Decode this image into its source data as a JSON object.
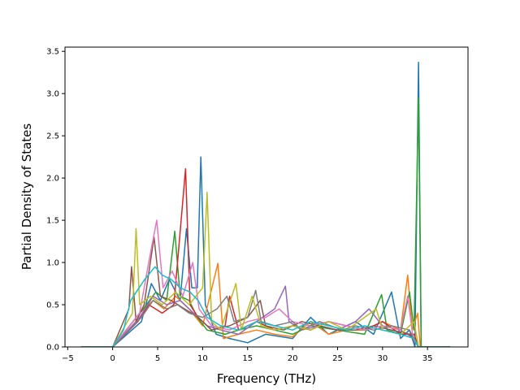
{
  "chart_data": {
    "type": "line",
    "title": "",
    "xlabel": "Frequency (THz)",
    "ylabel": "Partial Density of States",
    "xlim": [
      -5.3,
      39.5
    ],
    "ylim": [
      0.0,
      3.55
    ],
    "xticks": [
      -5,
      0,
      5,
      10,
      15,
      20,
      25,
      30,
      35
    ],
    "xtick_labels": [
      "−5",
      "0",
      "5",
      "10",
      "15",
      "20",
      "25",
      "30",
      "35"
    ],
    "yticks": [
      0.0,
      0.5,
      1.0,
      1.5,
      2.0,
      2.5,
      3.0,
      3.5
    ],
    "ytick_labels": [
      "0.0",
      "0.5",
      "1.0",
      "1.5",
      "2.0",
      "2.5",
      "3.0",
      "3.5"
    ],
    "grid": false,
    "legend": "none",
    "x_range": [
      -3.5,
      37.5
    ],
    "colors": [
      "#1f77b4",
      "#ff7f0e",
      "#2ca02c",
      "#d62728",
      "#9467bd",
      "#8c564b",
      "#e377c2",
      "#7f7f7f",
      "#bcbd22",
      "#17becf"
    ],
    "series": [
      {
        "values": [
          [
            -3.5,
            0
          ],
          [
            0,
            0
          ],
          [
            3.2,
            0.3
          ],
          [
            4.3,
            0.75
          ],
          [
            5.3,
            0.55
          ],
          [
            6.3,
            0.8
          ],
          [
            7.5,
            0.55
          ],
          [
            8.2,
            1.4
          ],
          [
            8.8,
            0.7
          ],
          [
            9.4,
            0.7
          ],
          [
            9.8,
            2.25
          ],
          [
            10.3,
            0.5
          ],
          [
            11.5,
            0.15
          ],
          [
            13,
            0.1
          ],
          [
            15,
            0.05
          ],
          [
            17,
            0.15
          ],
          [
            20,
            0.1
          ],
          [
            22,
            0.35
          ],
          [
            24,
            0.15
          ],
          [
            27,
            0.3
          ],
          [
            29,
            0.15
          ],
          [
            31,
            0.65
          ],
          [
            32,
            0.1
          ],
          [
            33,
            0.2
          ],
          [
            33.6,
            0
          ],
          [
            34.0,
            3.37
          ],
          [
            34.3,
            0
          ],
          [
            37.5,
            0
          ]
        ]
      },
      {
        "values": [
          [
            -3.5,
            0
          ],
          [
            0,
            0
          ],
          [
            3,
            0.4
          ],
          [
            4.5,
            0.55
          ],
          [
            5.7,
            0.45
          ],
          [
            7,
            0.6
          ],
          [
            8.5,
            0.45
          ],
          [
            10,
            0.25
          ],
          [
            11.7,
            0.99
          ],
          [
            12.3,
            0.1
          ],
          [
            14,
            0.15
          ],
          [
            16,
            0.2
          ],
          [
            18,
            0.15
          ],
          [
            20,
            0.12
          ],
          [
            22,
            0.3
          ],
          [
            24,
            0.15
          ],
          [
            26,
            0.2
          ],
          [
            28,
            0.2
          ],
          [
            30,
            0.3
          ],
          [
            32,
            0.2
          ],
          [
            32.8,
            0.85
          ],
          [
            33.3,
            0.2
          ],
          [
            33.9,
            0.4
          ],
          [
            34.2,
            0
          ],
          [
            37.5,
            0
          ]
        ]
      },
      {
        "values": [
          [
            -3.5,
            0
          ],
          [
            0,
            0
          ],
          [
            3.4,
            0.45
          ],
          [
            4.8,
            0.65
          ],
          [
            6.0,
            0.55
          ],
          [
            6.9,
            1.37
          ],
          [
            7.5,
            0.6
          ],
          [
            8.5,
            0.55
          ],
          [
            9.4,
            0.35
          ],
          [
            10.5,
            0.2
          ],
          [
            12.5,
            0.15
          ],
          [
            14,
            0.2
          ],
          [
            16,
            0.25
          ],
          [
            18,
            0.2
          ],
          [
            20,
            0.15
          ],
          [
            22,
            0.25
          ],
          [
            25,
            0.2
          ],
          [
            28,
            0.15
          ],
          [
            29.9,
            0.62
          ],
          [
            30.5,
            0.2
          ],
          [
            32,
            0.15
          ],
          [
            33.0,
            0.65
          ],
          [
            33.5,
            0.2
          ],
          [
            34.0,
            2.95
          ],
          [
            34.3,
            0
          ],
          [
            37.5,
            0
          ]
        ]
      },
      {
        "values": [
          [
            -3.5,
            0
          ],
          [
            0,
            0
          ],
          [
            2.8,
            0.3
          ],
          [
            4,
            0.5
          ],
          [
            5.5,
            0.4
          ],
          [
            6.8,
            0.5
          ],
          [
            8.1,
            2.11
          ],
          [
            8.6,
            0.5
          ],
          [
            9.5,
            0.35
          ],
          [
            11,
            0.2
          ],
          [
            12.5,
            0.25
          ],
          [
            13,
            0.6
          ],
          [
            14,
            0.2
          ],
          [
            16,
            0.3
          ],
          [
            18,
            0.2
          ],
          [
            20,
            0.25
          ],
          [
            22,
            0.2
          ],
          [
            24,
            0.3
          ],
          [
            26,
            0.25
          ],
          [
            28,
            0.2
          ],
          [
            30,
            0.3
          ],
          [
            32,
            0.15
          ],
          [
            33.5,
            0.15
          ],
          [
            34.0,
            0
          ],
          [
            37.5,
            0
          ]
        ]
      },
      {
        "values": [
          [
            -3.5,
            0
          ],
          [
            0,
            0
          ],
          [
            3,
            0.35
          ],
          [
            4.5,
            0.6
          ],
          [
            6,
            0.5
          ],
          [
            7.5,
            0.55
          ],
          [
            9,
            0.4
          ],
          [
            10.5,
            0.25
          ],
          [
            12,
            0.2
          ],
          [
            14,
            0.15
          ],
          [
            16,
            0.3
          ],
          [
            18,
            0.45
          ],
          [
            19.2,
            0.72
          ],
          [
            19.6,
            0.3
          ],
          [
            21,
            0.2
          ],
          [
            23,
            0.25
          ],
          [
            25,
            0.2
          ],
          [
            27,
            0.3
          ],
          [
            28.5,
            0.45
          ],
          [
            30,
            0.25
          ],
          [
            32,
            0.2
          ],
          [
            33.5,
            0.1
          ],
          [
            34,
            0
          ],
          [
            37.5,
            0
          ]
        ]
      },
      {
        "values": [
          [
            -3.5,
            0
          ],
          [
            0,
            0
          ],
          [
            1.8,
            0.45
          ],
          [
            2.1,
            0.95
          ],
          [
            2.6,
            0.3
          ],
          [
            3.5,
            0.5
          ],
          [
            4.6,
            1.3
          ],
          [
            5.3,
            0.6
          ],
          [
            6.5,
            0.55
          ],
          [
            8,
            0.45
          ],
          [
            9.5,
            0.35
          ],
          [
            11,
            0.2
          ],
          [
            13,
            0.25
          ],
          [
            15,
            0.35
          ],
          [
            16.4,
            0.55
          ],
          [
            17,
            0.25
          ],
          [
            19,
            0.2
          ],
          [
            21,
            0.3
          ],
          [
            23,
            0.25
          ],
          [
            25,
            0.2
          ],
          [
            27,
            0.2
          ],
          [
            29,
            0.25
          ],
          [
            31,
            0.2
          ],
          [
            33,
            0.15
          ],
          [
            34,
            0
          ],
          [
            37.5,
            0
          ]
        ]
      },
      {
        "values": [
          [
            -3.5,
            0
          ],
          [
            0,
            0
          ],
          [
            3,
            0.4
          ],
          [
            4.0,
            1.0
          ],
          [
            4.9,
            1.5
          ],
          [
            5.6,
            0.7
          ],
          [
            6.6,
            0.9
          ],
          [
            7.8,
            0.6
          ],
          [
            8.9,
            1.0
          ],
          [
            9.6,
            0.45
          ],
          [
            11,
            0.25
          ],
          [
            13,
            0.2
          ],
          [
            15,
            0.3
          ],
          [
            17,
            0.35
          ],
          [
            18.5,
            0.45
          ],
          [
            20,
            0.3
          ],
          [
            22,
            0.25
          ],
          [
            24,
            0.3
          ],
          [
            26,
            0.25
          ],
          [
            28,
            0.2
          ],
          [
            30,
            0.25
          ],
          [
            32,
            0.2
          ],
          [
            32.8,
            0.6
          ],
          [
            33.4,
            0.1
          ],
          [
            34,
            0
          ],
          [
            37.5,
            0
          ]
        ]
      },
      {
        "values": [
          [
            -3.5,
            0
          ],
          [
            0,
            0
          ],
          [
            3.2,
            0.35
          ],
          [
            4.5,
            0.55
          ],
          [
            6,
            0.45
          ],
          [
            7.2,
            0.5
          ],
          [
            8.5,
            0.4
          ],
          [
            10,
            0.35
          ],
          [
            11.6,
            0.45
          ],
          [
            12.7,
            0.6
          ],
          [
            13.5,
            0.3
          ],
          [
            15,
            0.35
          ],
          [
            15.9,
            0.67
          ],
          [
            16.5,
            0.3
          ],
          [
            18,
            0.25
          ],
          [
            20,
            0.3
          ],
          [
            21,
            0.2
          ],
          [
            23,
            0.3
          ],
          [
            25.5,
            0.2
          ],
          [
            27,
            0.25
          ],
          [
            29,
            0.2
          ],
          [
            31,
            0.25
          ],
          [
            33,
            0.2
          ],
          [
            34,
            0
          ],
          [
            37.5,
            0
          ]
        ]
      },
      {
        "values": [
          [
            -3.5,
            0
          ],
          [
            0,
            0
          ],
          [
            2.2,
            0.4
          ],
          [
            2.6,
            1.4
          ],
          [
            3.0,
            0.5
          ],
          [
            4.2,
            0.6
          ],
          [
            5.5,
            0.5
          ],
          [
            7,
            0.65
          ],
          [
            8.5,
            0.5
          ],
          [
            10.0,
            0.7
          ],
          [
            10.5,
            1.83
          ],
          [
            11.0,
            0.3
          ],
          [
            12,
            0.2
          ],
          [
            13.7,
            0.75
          ],
          [
            14.3,
            0.2
          ],
          [
            15.5,
            0.6
          ],
          [
            16.5,
            0.25
          ],
          [
            18,
            0.2
          ],
          [
            20,
            0.25
          ],
          [
            22,
            0.2
          ],
          [
            24,
            0.3
          ],
          [
            26,
            0.2
          ],
          [
            28,
            0.35
          ],
          [
            29.3,
            0.45
          ],
          [
            30,
            0.2
          ],
          [
            32,
            0.15
          ],
          [
            33.5,
            0.3
          ],
          [
            34,
            0
          ],
          [
            37.5,
            0
          ]
        ]
      },
      {
        "values": [
          [
            -3.5,
            0
          ],
          [
            0,
            0
          ],
          [
            1.2,
            0.2
          ],
          [
            2.0,
            0.55
          ],
          [
            3.5,
            0.79
          ],
          [
            4.7,
            0.95
          ],
          [
            5.5,
            0.85
          ],
          [
            6.5,
            0.8
          ],
          [
            7.5,
            0.7
          ],
          [
            8.6,
            0.65
          ],
          [
            9.5,
            0.55
          ],
          [
            10.5,
            0.35
          ],
          [
            12,
            0.25
          ],
          [
            14,
            0.2
          ],
          [
            16,
            0.3
          ],
          [
            18,
            0.25
          ],
          [
            20,
            0.2
          ],
          [
            22,
            0.3
          ],
          [
            24,
            0.25
          ],
          [
            26,
            0.2
          ],
          [
            28,
            0.25
          ],
          [
            30,
            0.2
          ],
          [
            32,
            0.15
          ],
          [
            33.5,
            0.1
          ],
          [
            34,
            0
          ],
          [
            37.5,
            0
          ]
        ]
      }
    ]
  }
}
